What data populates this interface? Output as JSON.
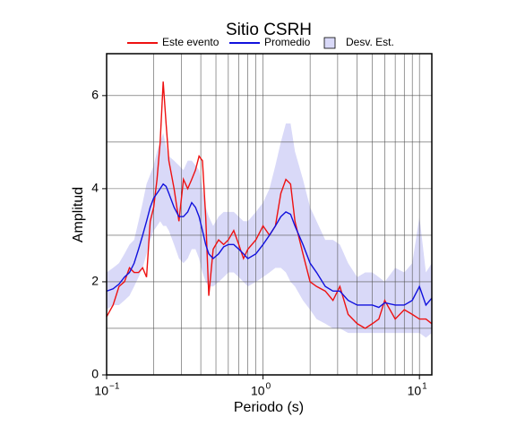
{
  "chart_data": {
    "type": "line",
    "title": "Sitio CSRH",
    "x_label": "Periodo (s)",
    "y_label": "Amplitud",
    "xscale": "log",
    "grid": true,
    "xlim": [
      0.1,
      12
    ],
    "ylim": [
      0,
      6.9
    ],
    "xticks": [
      {
        "value": 0.1,
        "label": "10",
        "exponent": "−1"
      },
      {
        "value": 1,
        "label": "10",
        "exponent": "0"
      },
      {
        "value": 10,
        "label": "10",
        "exponent": "1"
      }
    ],
    "xminor": [
      0.2,
      0.3,
      0.4,
      0.5,
      0.6,
      0.7,
      0.8,
      0.9,
      2,
      3,
      4,
      5,
      6,
      7,
      8,
      9
    ],
    "yticks": [
      0,
      2,
      4,
      6
    ],
    "yminor": [
      1,
      3,
      5
    ],
    "x": [
      0.1,
      0.11,
      0.12,
      0.13,
      0.14,
      0.15,
      0.16,
      0.17,
      0.18,
      0.19,
      0.2,
      0.21,
      0.22,
      0.23,
      0.24,
      0.25,
      0.27,
      0.29,
      0.31,
      0.33,
      0.35,
      0.37,
      0.39,
      0.41,
      0.43,
      0.45,
      0.48,
      0.52,
      0.56,
      0.6,
      0.65,
      0.7,
      0.75,
      0.8,
      0.9,
      1.0,
      1.1,
      1.2,
      1.3,
      1.4,
      1.5,
      1.6,
      1.8,
      2.0,
      2.2,
      2.5,
      2.8,
      3.1,
      3.5,
      4,
      4.5,
      5,
      5.5,
      6,
      7,
      8,
      9,
      10,
      11,
      12
    ],
    "band": {
      "name": "Desv. Est.",
      "color": "#d9d9f8",
      "upper": [
        2.2,
        2.3,
        2.4,
        2.6,
        2.8,
        2.9,
        3.3,
        3.7,
        4.1,
        4.3,
        4.5,
        4.8,
        5.0,
        5.2,
        4.9,
        4.7,
        4.6,
        4.5,
        4.4,
        4.6,
        4.6,
        4.5,
        4.4,
        4.0,
        3.6,
        3.4,
        3.2,
        3.4,
        3.5,
        3.5,
        3.5,
        3.4,
        3.3,
        3.3,
        3.5,
        3.7,
        4.0,
        4.5,
        5.0,
        5.4,
        5.4,
        4.8,
        4.2,
        3.6,
        3.3,
        2.9,
        2.9,
        2.8,
        2.4,
        2.1,
        2.2,
        2.2,
        2.1,
        2.0,
        2.3,
        2.2,
        2.4,
        3.4,
        2.2,
        2.4
      ],
      "lower": [
        1.4,
        1.5,
        1.5,
        1.6,
        1.7,
        1.9,
        2.1,
        2.3,
        2.6,
        2.9,
        3.1,
        3.2,
        3.3,
        3.2,
        3.2,
        3.1,
        2.8,
        2.5,
        2.4,
        2.5,
        2.7,
        2.7,
        2.5,
        2.2,
        2.0,
        1.9,
        1.9,
        2.0,
        2.1,
        2.2,
        2.2,
        2.1,
        2.0,
        1.9,
        2.0,
        2.1,
        2.2,
        2.3,
        2.3,
        2.2,
        2.0,
        1.9,
        1.6,
        1.4,
        1.2,
        1.1,
        1.0,
        1.0,
        0.9,
        0.9,
        0.9,
        0.9,
        0.9,
        0.9,
        0.9,
        0.9,
        0.9,
        0.9,
        0.8,
        0.9
      ]
    },
    "series": [
      {
        "name": "Este evento",
        "color": "#ee1111",
        "values": [
          1.25,
          1.5,
          1.9,
          2.0,
          2.3,
          2.2,
          2.2,
          2.3,
          2.1,
          3.3,
          3.6,
          4.2,
          5.0,
          6.3,
          5.4,
          4.6,
          4.0,
          3.3,
          4.2,
          4.0,
          4.2,
          4.4,
          4.7,
          4.6,
          3.4,
          1.7,
          2.7,
          2.9,
          2.8,
          2.9,
          3.1,
          2.8,
          2.5,
          2.7,
          2.9,
          3.2,
          3.0,
          3.2,
          3.9,
          4.2,
          4.1,
          3.3,
          2.6,
          2.0,
          1.9,
          1.8,
          1.6,
          1.9,
          1.3,
          1.1,
          1.0,
          1.1,
          1.2,
          1.6,
          1.2,
          1.4,
          1.3,
          1.2,
          1.2,
          1.1
        ]
      },
      {
        "name": "Promedio",
        "color": "#1111dd",
        "values": [
          1.8,
          1.85,
          1.95,
          2.1,
          2.2,
          2.4,
          2.7,
          3.0,
          3.3,
          3.6,
          3.8,
          3.9,
          4.0,
          4.1,
          4.05,
          3.9,
          3.6,
          3.4,
          3.4,
          3.5,
          3.7,
          3.6,
          3.4,
          3.1,
          2.8,
          2.6,
          2.5,
          2.6,
          2.75,
          2.8,
          2.8,
          2.7,
          2.6,
          2.5,
          2.6,
          2.8,
          3.0,
          3.2,
          3.4,
          3.5,
          3.45,
          3.2,
          2.8,
          2.4,
          2.2,
          1.9,
          1.8,
          1.8,
          1.6,
          1.5,
          1.5,
          1.5,
          1.45,
          1.55,
          1.5,
          1.5,
          1.6,
          1.9,
          1.5,
          1.65
        ]
      }
    ]
  }
}
